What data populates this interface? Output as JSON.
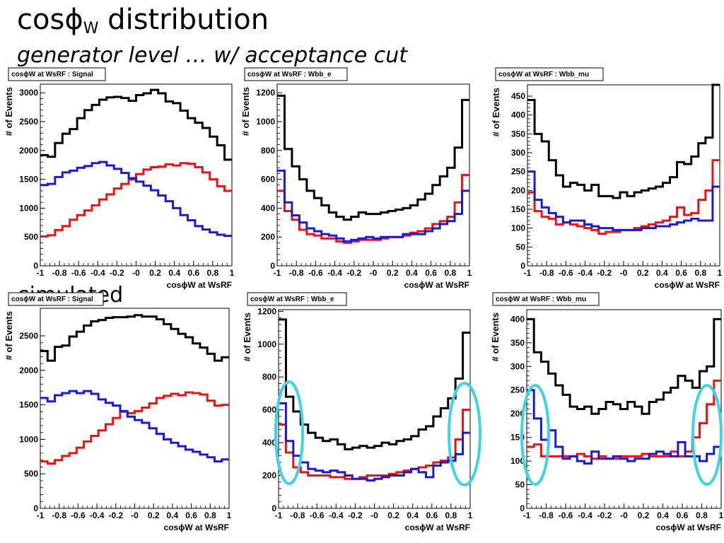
{
  "slide": {
    "title_main": "cos",
    "title_phi": "ϕ",
    "title_sub": "W",
    "title_rest": " distribution",
    "subtitle": "generator level … w/ acceptance cut",
    "section_label": "simulated"
  },
  "colors": {
    "black": "#000000",
    "red": "#ee1111",
    "blue": "#1a1ad0",
    "cyan": "#3fd3e8"
  },
  "chart_data": [
    {
      "type": "line",
      "drawstyle": "steps",
      "title": "cosϕW at WsRF : Signal",
      "xlabel": "cosϕW at WsRF",
      "ylabel": "# of Events",
      "xlim": [
        -1,
        1
      ],
      "ylim": [
        0,
        3150
      ],
      "yticks": [
        0,
        500,
        1000,
        1500,
        2000,
        2500,
        3000
      ],
      "xticks": [
        "-1",
        "-0.8",
        "-0.6",
        "-0.4",
        "-0.2",
        "-0",
        "0.2",
        "0.4",
        "0.6",
        "0.8",
        "1"
      ],
      "series": [
        {
          "color": "black",
          "values": [
            1920,
            1890,
            2130,
            2290,
            2370,
            2560,
            2700,
            2790,
            2880,
            2920,
            2930,
            2910,
            2860,
            2960,
            2990,
            3050,
            2990,
            2850,
            2820,
            2690,
            2560,
            2480,
            2390,
            2240,
            2090,
            1840
          ]
        },
        {
          "color": "red",
          "values": [
            510,
            530,
            620,
            690,
            800,
            880,
            960,
            1050,
            1150,
            1240,
            1340,
            1420,
            1500,
            1590,
            1670,
            1710,
            1720,
            1760,
            1740,
            1780,
            1770,
            1710,
            1620,
            1500,
            1380,
            1300
          ]
        },
        {
          "color": "blue",
          "values": [
            1400,
            1420,
            1540,
            1620,
            1650,
            1700,
            1730,
            1780,
            1800,
            1740,
            1680,
            1610,
            1520,
            1460,
            1390,
            1310,
            1220,
            1120,
            1000,
            880,
            790,
            690,
            630,
            580,
            540,
            520
          ]
        }
      ]
    },
    {
      "type": "line",
      "drawstyle": "steps",
      "title": "cosϕW at WsRF : Wbb_e",
      "xlabel": "cosϕW at WsRF",
      "ylabel": "# of Events",
      "xlim": [
        -1,
        1
      ],
      "ylim": [
        0,
        1260
      ],
      "yticks": [
        0,
        200,
        400,
        600,
        800,
        1000,
        1200
      ],
      "xticks": [
        "-1",
        "-0.8",
        "-0.6",
        "-0.4",
        "-0.2",
        "-0",
        "0.2",
        "0.4",
        "0.6",
        "0.8",
        "1"
      ],
      "series": [
        {
          "color": "black",
          "values": [
            1180,
            810,
            690,
            600,
            520,
            470,
            420,
            370,
            340,
            320,
            340,
            370,
            360,
            360,
            370,
            380,
            390,
            400,
            420,
            460,
            500,
            560,
            620,
            680,
            820,
            1150
          ]
        },
        {
          "color": "red",
          "values": [
            520,
            380,
            320,
            250,
            220,
            210,
            190,
            190,
            170,
            160,
            170,
            180,
            180,
            180,
            190,
            200,
            200,
            210,
            230,
            240,
            260,
            290,
            310,
            340,
            440,
            630
          ]
        },
        {
          "color": "blue",
          "values": [
            660,
            440,
            350,
            300,
            260,
            240,
            220,
            210,
            190,
            170,
            180,
            190,
            200,
            190,
            200,
            200,
            200,
            220,
            220,
            220,
            240,
            260,
            290,
            310,
            360,
            520
          ]
        }
      ]
    },
    {
      "type": "line",
      "drawstyle": "steps",
      "title": "cosϕW at WsRF : Wbb_mu",
      "xlabel": "cosϕW at WsRF",
      "ylabel": "# of Events",
      "xlim": [
        -1,
        1
      ],
      "ylim": [
        0,
        480
      ],
      "yticks": [
        0,
        50,
        100,
        150,
        200,
        250,
        300,
        350,
        400,
        450
      ],
      "xticks": [
        "-1",
        "-0.8",
        "-0.6",
        "-0.4",
        "-0.2",
        "-0",
        "0.2",
        "0.4",
        "0.6",
        "0.8",
        "1"
      ],
      "series": [
        {
          "color": "black",
          "values": [
            440,
            350,
            330,
            280,
            240,
            210,
            220,
            215,
            200,
            215,
            185,
            185,
            180,
            195,
            185,
            195,
            200,
            205,
            210,
            220,
            235,
            275,
            270,
            290,
            325,
            340,
            480
          ]
        },
        {
          "color": "red",
          "values": [
            195,
            145,
            130,
            125,
            110,
            115,
            110,
            105,
            100,
            95,
            85,
            90,
            90,
            95,
            95,
            100,
            105,
            110,
            115,
            120,
            130,
            155,
            135,
            140,
            175,
            200,
            280
          ]
        },
        {
          "color": "blue",
          "values": [
            250,
            175,
            155,
            140,
            130,
            115,
            120,
            120,
            110,
            105,
            100,
            100,
            95,
            95,
            95,
            95,
            100,
            100,
            105,
            105,
            110,
            115,
            120,
            125,
            120,
            120,
            210
          ]
        }
      ]
    },
    {
      "type": "line",
      "drawstyle": "steps",
      "title": "cosϕW at WsRF : Signal",
      "xlabel": "cosϕW at WsRF",
      "ylabel": "# of Events",
      "xlim": [
        -1,
        1
      ],
      "ylim": [
        0,
        2900
      ],
      "yticks": [
        0,
        500,
        1000,
        1500,
        2000,
        2500
      ],
      "xticks": [
        "-1",
        "-0.8",
        "-0.6",
        "-0.4",
        "-0.2",
        "-0",
        "0.2",
        "0.4",
        "0.6",
        "0.8",
        "1"
      ],
      "series": [
        {
          "color": "black",
          "values": [
            2280,
            2140,
            2340,
            2360,
            2490,
            2560,
            2650,
            2710,
            2730,
            2760,
            2770,
            2770,
            2780,
            2800,
            2780,
            2780,
            2740,
            2670,
            2600,
            2530,
            2480,
            2390,
            2330,
            2240,
            2140,
            2190
          ]
        },
        {
          "color": "red",
          "values": [
            680,
            650,
            700,
            760,
            800,
            880,
            970,
            1050,
            1130,
            1220,
            1310,
            1400,
            1380,
            1410,
            1460,
            1520,
            1600,
            1630,
            1660,
            1640,
            1680,
            1670,
            1650,
            1560,
            1490,
            1500
          ]
        },
        {
          "color": "blue",
          "values": [
            1600,
            1550,
            1640,
            1670,
            1700,
            1670,
            1700,
            1660,
            1580,
            1530,
            1490,
            1410,
            1330,
            1280,
            1240,
            1160,
            1080,
            1000,
            950,
            900,
            850,
            820,
            780,
            740,
            680,
            710
          ]
        }
      ]
    },
    {
      "type": "line",
      "drawstyle": "steps",
      "title": "cosϕW at WsRF : Wbb_e",
      "xlabel": "cosϕW at WsRF",
      "ylabel": "# of Events",
      "xlim": [
        -1,
        1
      ],
      "ylim": [
        0,
        1210
      ],
      "yticks": [
        0,
        200,
        400,
        600,
        800,
        1000,
        1200
      ],
      "xticks": [
        "-1",
        "-0.8",
        "-0.6",
        "-0.4",
        "-0.2",
        "-0",
        "0.2",
        "0.4",
        "0.6",
        "0.8",
        "1"
      ],
      "series": [
        {
          "color": "black",
          "values": [
            1150,
            680,
            590,
            510,
            460,
            430,
            410,
            420,
            390,
            360,
            370,
            380,
            370,
            380,
            400,
            390,
            410,
            420,
            440,
            480,
            500,
            560,
            610,
            670,
            790,
            1070
          ]
        },
        {
          "color": "red",
          "values": [
            510,
            340,
            250,
            220,
            200,
            200,
            200,
            190,
            190,
            180,
            180,
            190,
            200,
            200,
            200,
            210,
            220,
            230,
            240,
            250,
            260,
            280,
            290,
            310,
            420,
            600
          ]
        },
        {
          "color": "blue",
          "values": [
            640,
            410,
            320,
            280,
            240,
            230,
            220,
            230,
            220,
            200,
            180,
            180,
            170,
            180,
            190,
            200,
            200,
            220,
            240,
            220,
            190,
            260,
            280,
            290,
            330,
            460
          ]
        }
      ]
    },
    {
      "type": "line",
      "drawstyle": "steps",
      "title": "cosϕW at WsRF : Wbb_mu",
      "xlabel": "cosϕW at WsRF",
      "ylabel": "# of Events",
      "xlim": [
        -1,
        1
      ],
      "ylim": [
        0,
        420
      ],
      "yticks": [
        0,
        50,
        100,
        150,
        200,
        250,
        300,
        350,
        400
      ],
      "xticks": [
        "-1",
        "-0.8",
        "-0.6",
        "-0.4",
        "-0.2",
        "-0",
        "0.2",
        "0.4",
        "0.6",
        "0.8",
        "1"
      ],
      "series": [
        {
          "color": "black",
          "values": [
            400,
            330,
            310,
            285,
            260,
            240,
            215,
            210,
            215,
            200,
            210,
            225,
            220,
            210,
            225,
            215,
            200,
            225,
            230,
            245,
            255,
            280,
            270,
            255,
            290,
            300,
            400
          ]
        },
        {
          "color": "red",
          "values": [
            130,
            135,
            110,
            110,
            110,
            110,
            110,
            115,
            110,
            105,
            110,
            105,
            105,
            110,
            110,
            110,
            115,
            110,
            110,
            110,
            120,
            110,
            120,
            150,
            180,
            220,
            270
          ]
        },
        {
          "color": "blue",
          "values": [
            250,
            190,
            145,
            165,
            130,
            105,
            110,
            100,
            95,
            120,
            105,
            105,
            110,
            105,
            100,
            105,
            105,
            115,
            120,
            115,
            110,
            140,
            110,
            110,
            100,
            115,
            130
          ]
        }
      ]
    }
  ]
}
